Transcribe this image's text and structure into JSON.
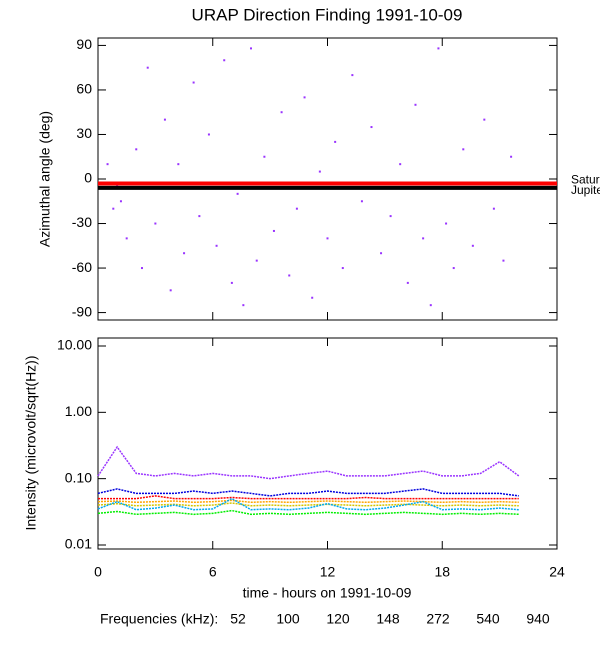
{
  "chart_data": [
    {
      "type": "scatter",
      "title": "URAP Direction Finding  1991-10-09",
      "y_label": "Azimuthal angle (deg)",
      "xlim": [
        0,
        24
      ],
      "ylim": [
        -95,
        95
      ],
      "yticks": [
        -90,
        -60,
        -30,
        0,
        30,
        60,
        90
      ],
      "color": "#9933ff",
      "x": [
        0.5,
        0.8,
        1.0,
        1.2,
        1.5,
        2,
        2.3,
        2.6,
        3,
        3.5,
        3.8,
        4.2,
        4.5,
        5,
        5.3,
        5.8,
        6.2,
        6.6,
        7,
        7.3,
        7.6,
        8,
        8.3,
        8.7,
        9.2,
        9.6,
        10,
        10.4,
        10.8,
        11.2,
        11.6,
        12,
        12.4,
        12.8,
        13.3,
        13.8,
        14.3,
        14.8,
        15.3,
        15.8,
        16.2,
        16.6,
        17,
        17.4,
        17.8,
        18.2,
        18.6,
        19.1,
        19.6,
        20.2,
        20.7,
        21.2,
        21.6
      ],
      "y": [
        10,
        -20,
        -5,
        -15,
        -40,
        20,
        -60,
        75,
        -30,
        40,
        -75,
        10,
        -50,
        65,
        -25,
        30,
        -45,
        80,
        -70,
        -10,
        -85,
        88,
        -55,
        15,
        -35,
        45,
        -65,
        -20,
        55,
        -80,
        5,
        -40,
        25,
        -60,
        70,
        -15,
        35,
        -50,
        -25,
        10,
        -70,
        50,
        -40,
        -85,
        88,
        -30,
        -60,
        20,
        -45,
        40,
        -20,
        -55,
        15
      ],
      "reference_lines": [
        {
          "label": "Saturn",
          "value": -3,
          "color": "#ff0000"
        },
        {
          "label": "Jupiter",
          "value": -6,
          "color": "#000000"
        }
      ]
    },
    {
      "type": "line",
      "x_label": "time - hours on 1991-10-09",
      "y_label": "Intensity (microvolt/sqrt(Hz))",
      "legend_title": "Frequencies (kHz):",
      "log_y": true,
      "xlim": [
        0,
        24
      ],
      "xticks": [
        0,
        6,
        12,
        18,
        24
      ],
      "ylim": [
        0.0087,
        13.2
      ],
      "yticks": [
        0.01,
        {
          "value": 0.1,
          "label": "0.10"
        },
        {
          "value": 1,
          "label": "1.00"
        },
        {
          "value": 10,
          "label": "10.00"
        }
      ],
      "x": [
        0,
        1,
        2,
        3,
        4,
        5,
        6,
        7,
        8,
        9,
        10,
        11,
        12,
        13,
        14,
        15,
        16,
        17,
        18,
        19,
        20,
        21,
        22
      ],
      "series": [
        {
          "name": "52",
          "color": "#ff0000",
          "values": [
            0.05,
            0.05,
            0.05,
            0.055,
            0.05,
            0.05,
            0.05,
            0.052,
            0.05,
            0.05,
            0.05,
            0.05,
            0.05,
            0.05,
            0.052,
            0.05,
            0.05,
            0.05,
            0.05,
            0.05,
            0.05,
            0.05,
            0.05
          ]
        },
        {
          "name": "100",
          "color": "#ffa500",
          "values": [
            0.045,
            0.046,
            0.044,
            0.045,
            0.046,
            0.044,
            0.045,
            0.047,
            0.044,
            0.045,
            0.044,
            0.045,
            0.046,
            0.045,
            0.044,
            0.045,
            0.046,
            0.045,
            0.044,
            0.045,
            0.044,
            0.045,
            0.044
          ]
        },
        {
          "name": "120",
          "color": "#d4c400",
          "values": [
            0.04,
            0.042,
            0.039,
            0.04,
            0.041,
            0.039,
            0.04,
            0.043,
            0.039,
            0.04,
            0.039,
            0.04,
            0.041,
            0.04,
            0.039,
            0.04,
            0.041,
            0.04,
            0.039,
            0.04,
            0.039,
            0.04,
            0.039
          ]
        },
        {
          "name": "148",
          "color": "#00ee00",
          "values": [
            0.03,
            0.032,
            0.029,
            0.03,
            0.031,
            0.029,
            0.03,
            0.033,
            0.029,
            0.03,
            0.029,
            0.03,
            0.031,
            0.03,
            0.029,
            0.03,
            0.031,
            0.03,
            0.029,
            0.03,
            0.029,
            0.03,
            0.029
          ]
        },
        {
          "name": "272",
          "color": "#00aaee",
          "values": [
            0.035,
            0.045,
            0.034,
            0.036,
            0.04,
            0.034,
            0.035,
            0.05,
            0.034,
            0.035,
            0.034,
            0.036,
            0.042,
            0.035,
            0.034,
            0.036,
            0.04,
            0.045,
            0.034,
            0.035,
            0.034,
            0.036,
            0.034
          ]
        },
        {
          "name": "540",
          "color": "#0000dd",
          "values": [
            0.06,
            0.07,
            0.06,
            0.06,
            0.06,
            0.065,
            0.06,
            0.065,
            0.06,
            0.055,
            0.06,
            0.06,
            0.065,
            0.06,
            0.06,
            0.06,
            0.065,
            0.07,
            0.06,
            0.06,
            0.06,
            0.06,
            0.055
          ]
        },
        {
          "name": "940",
          "color": "#9933ff",
          "values": [
            0.11,
            0.3,
            0.12,
            0.11,
            0.12,
            0.11,
            0.12,
            0.11,
            0.11,
            0.1,
            0.11,
            0.12,
            0.13,
            0.11,
            0.11,
            0.11,
            0.12,
            0.13,
            0.11,
            0.11,
            0.12,
            0.18,
            0.11
          ]
        }
      ]
    }
  ]
}
